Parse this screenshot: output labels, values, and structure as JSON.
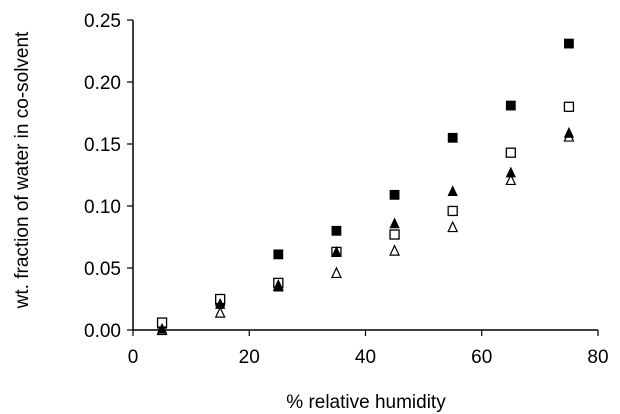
{
  "chart_data": {
    "type": "scatter",
    "title": "",
    "xlabel": "% relative humidity",
    "ylabel": "wt. fraction of water in co-solvent",
    "xlim": [
      0,
      80
    ],
    "ylim": [
      0,
      0.25
    ],
    "xticks": [
      0,
      20,
      40,
      60,
      80
    ],
    "xtick_labels": [
      "0",
      "20",
      "40",
      "60",
      "80"
    ],
    "yticks": [
      0,
      0.05,
      0.1,
      0.15,
      0.2,
      0.25
    ],
    "ytick_labels": [
      "0.00",
      "0.05",
      "0.10",
      "0.15",
      "0.20",
      "0.25"
    ],
    "grid": false,
    "legend": "none",
    "series": [
      {
        "marker": "filled-square",
        "color": "#000000",
        "x": [
          5,
          15,
          25,
          35,
          45,
          55,
          65,
          75
        ],
        "y": [
          0.005,
          0.023,
          0.061,
          0.08,
          0.109,
          0.155,
          0.181,
          0.231
        ]
      },
      {
        "marker": "open-square",
        "color": "#000000",
        "x": [
          5,
          15,
          25,
          35,
          45,
          55,
          65,
          75
        ],
        "y": [
          0.006,
          0.025,
          0.038,
          0.063,
          0.077,
          0.096,
          0.143,
          0.18
        ]
      },
      {
        "marker": "filled-triangle",
        "color": "#000000",
        "x": [
          5,
          15,
          25,
          35,
          45,
          55,
          65,
          75
        ],
        "y": [
          0.001,
          0.021,
          0.035,
          0.063,
          0.086,
          0.112,
          0.127,
          0.159
        ]
      },
      {
        "marker": "open-triangle",
        "color": "#000000",
        "x": [
          5,
          15,
          25,
          35,
          45,
          55,
          65,
          75
        ],
        "y": [
          0.0,
          0.014,
          0.036,
          0.046,
          0.064,
          0.083,
          0.121,
          0.156
        ]
      }
    ]
  }
}
